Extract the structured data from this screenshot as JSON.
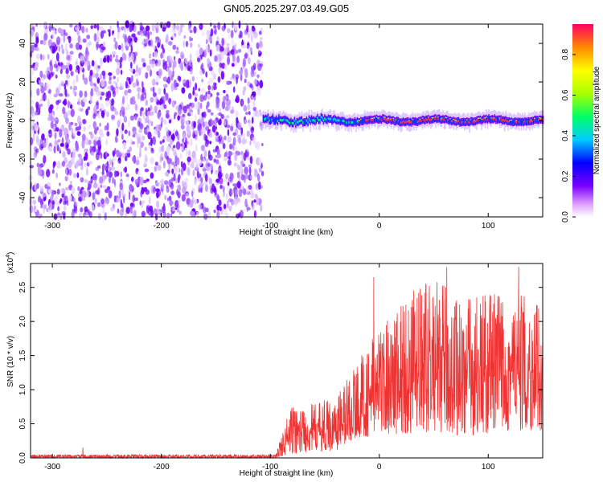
{
  "chart_data": [
    {
      "type": "heatmap",
      "title": "GN05.2025.297.03.49.G05",
      "xlabel": "Height of straight line (km)",
      "ylabel": "Frequency (Hz)",
      "xlim": [
        -320,
        150
      ],
      "ylim": [
        -50,
        50
      ],
      "xticks": [
        -300,
        -200,
        -100,
        0,
        100
      ],
      "yticks": [
        -40,
        -20,
        0,
        20,
        40
      ],
      "colorbar": {
        "label": "Normalized spectral amplitude",
        "range": [
          0.0,
          0.95
        ],
        "ticks": [
          "0.0",
          "0.2",
          "0.4",
          "0.6",
          "0.8"
        ],
        "tick_values": [
          0.0,
          0.2,
          0.4,
          0.6,
          0.8
        ]
      },
      "features": {
        "noise_region_x": [
          -320,
          -107
        ],
        "signal_line_x": [
          -107,
          150
        ],
        "signal_line_frequency": 0,
        "signal_line_peak_amplitude": 0.95
      }
    },
    {
      "type": "line",
      "xlabel": "Height of straight line (km)",
      "ylabel": "SNR (10 * v/v)",
      "scale_label": "(x10",
      "scale_exponent": "4",
      "scale_suffix": ")",
      "xlim": [
        -320,
        150
      ],
      "ylim": [
        0,
        2.85
      ],
      "xticks": [
        -300,
        -200,
        -100,
        0,
        100
      ],
      "yticks": [
        0.0,
        0.5,
        1.0,
        1.5,
        2.0,
        2.5
      ],
      "ytick_labels": [
        "0.0",
        "0.5",
        "1.0",
        "1.5",
        "2.0",
        "2.5"
      ],
      "series": [
        {
          "name": "SNR",
          "color": "#ee3333",
          "envelope": [
            {
              "x": -320,
              "low": 0.0,
              "high": 0.05
            },
            {
              "x": -95,
              "low": 0.0,
              "high": 0.05
            },
            {
              "x": -82,
              "low": 0.05,
              "high": 0.75
            },
            {
              "x": -60,
              "low": 0.1,
              "high": 0.8
            },
            {
              "x": -40,
              "low": 0.1,
              "high": 0.9
            },
            {
              "x": -30,
              "low": 0.2,
              "high": 1.2
            },
            {
              "x": -20,
              "low": 0.3,
              "high": 1.4
            },
            {
              "x": -10,
              "low": 0.3,
              "high": 1.7
            },
            {
              "x": 0,
              "low": 0.4,
              "high": 1.9
            },
            {
              "x": 20,
              "low": 0.3,
              "high": 2.4
            },
            {
              "x": 50,
              "low": 0.4,
              "high": 2.6
            },
            {
              "x": 80,
              "low": 0.3,
              "high": 2.4
            },
            {
              "x": 120,
              "low": 0.4,
              "high": 2.5
            },
            {
              "x": 150,
              "low": 0.4,
              "high": 2.2
            }
          ],
          "spikes": [
            {
              "x": -272,
              "y": 0.15
            },
            {
              "x": -5,
              "y": 2.65
            },
            {
              "x": 62,
              "y": 2.8
            },
            {
              "x": 128,
              "y": 2.8
            }
          ]
        }
      ]
    }
  ]
}
